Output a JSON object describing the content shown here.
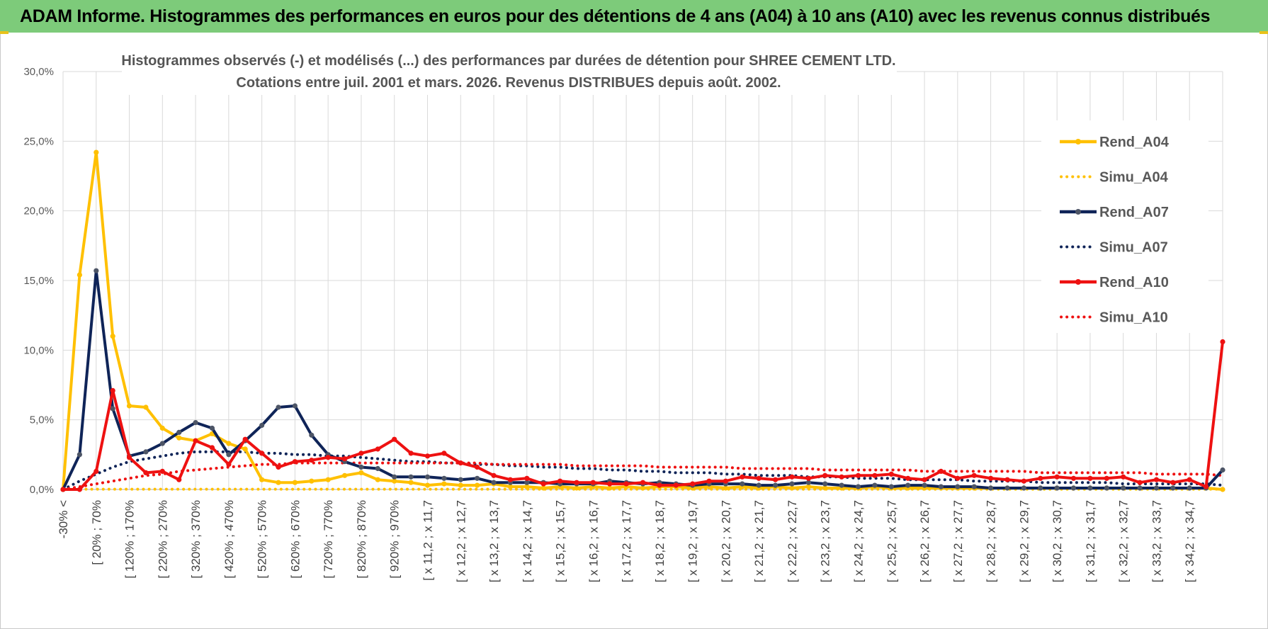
{
  "banner": {
    "text": "ADAM Informe. Histogrammes des performances en euros pour des détentions de 4 ans (A04) à 10 ans (A10) avec les revenus connus distribués"
  },
  "chart_data": {
    "type": "line",
    "title": [
      "Histogrammes observés (-) et modélisés (...) des performances par durées de détention pour SHREE CEMENT LTD.",
      "Cotations entre juil. 2001 et mars. 2026.  Revenus DISTRIBUES depuis août. 2002."
    ],
    "ylim": [
      0,
      30
    ],
    "yticks": [
      "0,0%",
      "5,0%",
      "10,0%",
      "15,0%",
      "20,0%",
      "25,0%",
      "30,0%"
    ],
    "xtick_labels": [
      "-30% <",
      "[ 20% ; 70%",
      "[ 120% ; 170%",
      "[ 220% ; 270%",
      "[ 320% ; 370%",
      "[ 420% ; 470%",
      "[ 520% ; 570%",
      "[ 620% ; 670%",
      "[ 720% ; 770%",
      "[ 820% ; 870%",
      "[ 920% ; 970%",
      "[ x 11,2 ; x 11,7",
      "[ x 12,2 ; x 12,7",
      "[ x 13,2 ; x 13,7",
      "[ x 14,2 ; x 14,7",
      "[ x 15,2 ; x 15,7",
      "[ x 16,2 ; x 16,7",
      "[ x 17,2 ; x 17,7",
      "[ x 18,2 ; x 18,7",
      "[ x 19,2 ; x 19,7",
      "[ x 20,2 ; x 20,7",
      "[ x 21,2 ; x 21,7",
      "[ x 22,2 ; x 22,7",
      "[ x 23,2 ; x 23,7",
      "[ x 24,2 ; x 24,7",
      "[ x 25,2 ; x 25,7",
      "[ x 26,2 ; x 26,7",
      "[ x 27,2 ; x 27,7",
      "[ x 28,2 ; x 28,7",
      "[ x 29,2 ; x 29,7",
      "[ x 30,2 ; x 30,7",
      "[ x 31,2 ; x 31,7",
      "[ x 32,2 ; x 32,7",
      "[ x 33,2 ; x 33,7",
      "[ x 34,2 ; x 34,7"
    ],
    "grid": true,
    "legend_position": "right",
    "series": [
      {
        "name": "Rend_A04",
        "style": "solid",
        "color": "#ffc000",
        "values": [
          0,
          15.4,
          24.2,
          11.0,
          6.0,
          5.9,
          4.4,
          3.7,
          3.5,
          4.0,
          3.3,
          2.9,
          0.7,
          0.5,
          0.5,
          0.6,
          0.7,
          1.0,
          1.2,
          0.7,
          0.6,
          0.5,
          0.3,
          0.4,
          0.3,
          0.3,
          0.4,
          0.2,
          0.2,
          0.1,
          0.2,
          0.1,
          0.2,
          0.1,
          0.2,
          0.1,
          0.2,
          0.2,
          0.1,
          0.2,
          0.1,
          0.2,
          0.1,
          0.2,
          0.1,
          0.2,
          0.1,
          0.1,
          0.1,
          0.2,
          0.1,
          0.1,
          0.1,
          0.1,
          0.1,
          0.1,
          0.1,
          0.1,
          0.1,
          0.1,
          0.1,
          0.1,
          0.1,
          0.1,
          0.1,
          0.1,
          0.1,
          0.1,
          0.1,
          0.1,
          0.0
        ]
      },
      {
        "name": "Simu_A04",
        "style": "dotted",
        "color": "#ffc000",
        "values": [
          0,
          0.02,
          0.02,
          0.02,
          0.02,
          0.02,
          0.02,
          0.02,
          0.02,
          0.02,
          0.02,
          0.02,
          0.02,
          0.02,
          0.02,
          0.02,
          0.02,
          0.02,
          0.02,
          0.02,
          0.02,
          0.02,
          0.02,
          0.02,
          0.02,
          0.02,
          0.02,
          0.02,
          0.02,
          0.02,
          0.02,
          0.02,
          0.02,
          0.02,
          0.02,
          0.02,
          0.02,
          0.02,
          0.02,
          0.02,
          0.02,
          0.02,
          0.02,
          0.02,
          0.02,
          0.02,
          0.02,
          0.02,
          0.02,
          0.02,
          0.02,
          0.02,
          0.02,
          0.02,
          0.02,
          0.02,
          0.02,
          0.02,
          0.02,
          0.02,
          0.02,
          0.02,
          0.02,
          0.02,
          0.02,
          0.02,
          0.02,
          0.02,
          0.02,
          0.02,
          0.02
        ]
      },
      {
        "name": "Rend_A07",
        "style": "solid",
        "color": "#0f2458",
        "values": [
          0,
          2.5,
          15.7,
          5.8,
          2.4,
          2.7,
          3.3,
          4.1,
          4.8,
          4.4,
          2.5,
          3.5,
          4.6,
          5.9,
          6.0,
          3.9,
          2.5,
          2.0,
          1.6,
          1.5,
          0.9,
          0.9,
          0.9,
          0.8,
          0.7,
          0.8,
          0.5,
          0.5,
          0.5,
          0.5,
          0.4,
          0.4,
          0.4,
          0.6,
          0.5,
          0.4,
          0.5,
          0.4,
          0.3,
          0.4,
          0.4,
          0.4,
          0.3,
          0.3,
          0.4,
          0.5,
          0.4,
          0.3,
          0.2,
          0.3,
          0.2,
          0.3,
          0.3,
          0.2,
          0.2,
          0.2,
          0.1,
          0.1,
          0.1,
          0.1,
          0.1,
          0.1,
          0.1,
          0.1,
          0.1,
          0.1,
          0.1,
          0.1,
          0.1,
          0.1,
          1.4
        ]
      },
      {
        "name": "Simu_A07",
        "style": "dotted",
        "color": "#0f2458",
        "values": [
          0,
          0.6,
          1.1,
          1.6,
          2.0,
          2.2,
          2.4,
          2.6,
          2.7,
          2.7,
          2.7,
          2.7,
          2.6,
          2.6,
          2.5,
          2.5,
          2.4,
          2.4,
          2.3,
          2.2,
          2.1,
          2.0,
          2.0,
          1.9,
          1.9,
          1.8,
          1.8,
          1.7,
          1.7,
          1.6,
          1.6,
          1.5,
          1.5,
          1.4,
          1.4,
          1.3,
          1.3,
          1.2,
          1.2,
          1.2,
          1.1,
          1.1,
          1.0,
          1.0,
          1.0,
          0.9,
          0.9,
          0.9,
          0.8,
          0.8,
          0.8,
          0.7,
          0.7,
          0.7,
          0.7,
          0.6,
          0.6,
          0.6,
          0.6,
          0.5,
          0.5,
          0.5,
          0.5,
          0.5,
          0.4,
          0.4,
          0.4,
          0.4,
          0.4,
          0.4,
          0.3
        ]
      },
      {
        "name": "Rend_A10",
        "style": "solid",
        "color": "#ee1111",
        "values": [
          0,
          0,
          1.3,
          7.1,
          2.3,
          1.2,
          1.3,
          0.7,
          3.5,
          3.0,
          1.8,
          3.6,
          2.6,
          1.6,
          2.0,
          2.1,
          2.3,
          2.2,
          2.6,
          2.9,
          3.6,
          2.6,
          2.4,
          2.6,
          1.9,
          1.6,
          1.0,
          0.7,
          0.8,
          0.4,
          0.6,
          0.5,
          0.5,
          0.4,
          0.4,
          0.5,
          0.3,
          0.3,
          0.4,
          0.6,
          0.6,
          0.9,
          0.8,
          0.7,
          0.9,
          0.8,
          1.0,
          0.9,
          1.0,
          1.0,
          1.1,
          0.8,
          0.7,
          1.3,
          0.8,
          1.0,
          0.8,
          0.7,
          0.6,
          0.8,
          0.9,
          0.8,
          0.8,
          0.8,
          0.9,
          0.5,
          0.7,
          0.5,
          0.7,
          0.2,
          10.6
        ]
      },
      {
        "name": "Simu_A10",
        "style": "dotted",
        "color": "#ee1111",
        "values": [
          0,
          0.2,
          0.4,
          0.6,
          0.8,
          1.0,
          1.1,
          1.3,
          1.4,
          1.5,
          1.6,
          1.7,
          1.8,
          1.8,
          1.9,
          1.9,
          1.9,
          1.9,
          1.9,
          1.9,
          1.9,
          1.9,
          1.9,
          1.9,
          1.9,
          1.9,
          1.8,
          1.8,
          1.8,
          1.8,
          1.8,
          1.7,
          1.7,
          1.7,
          1.7,
          1.7,
          1.6,
          1.6,
          1.6,
          1.6,
          1.6,
          1.5,
          1.5,
          1.5,
          1.5,
          1.5,
          1.4,
          1.4,
          1.4,
          1.4,
          1.4,
          1.4,
          1.3,
          1.3,
          1.3,
          1.3,
          1.3,
          1.3,
          1.3,
          1.2,
          1.2,
          1.2,
          1.2,
          1.2,
          1.2,
          1.2,
          1.1,
          1.1,
          1.1,
          1.1,
          1.0
        ]
      }
    ]
  }
}
